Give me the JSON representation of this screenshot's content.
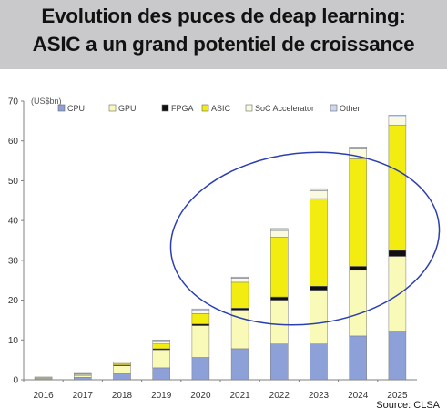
{
  "header": {
    "title_line1": "Evolution des puces de deap learning:",
    "title_line2": "ASIC a un grand potentiel de croissance"
  },
  "source": "Source: CLSA",
  "chart_data": {
    "type": "bar",
    "stacked": true,
    "unit_label": "(US$bn)",
    "categories": [
      "2016",
      "2017",
      "2018",
      "2019",
      "2020",
      "2021",
      "2022",
      "2023",
      "2024",
      "2025"
    ],
    "ylim": [
      0,
      70
    ],
    "yticks": [
      0,
      10,
      20,
      30,
      40,
      50,
      60,
      70
    ],
    "legend_position": "top",
    "series": [
      {
        "name": "CPU",
        "color": "#8ea0d8",
        "values": [
          0.3,
          0.6,
          1.5,
          3.0,
          5.6,
          7.8,
          9.0,
          9.0,
          11.0,
          12.0
        ]
      },
      {
        "name": "GPU",
        "color": "#fafab8",
        "values": [
          0.2,
          0.5,
          2.0,
          4.5,
          8.0,
          9.7,
          11.0,
          13.5,
          16.5,
          19.0
        ]
      },
      {
        "name": "FPGA",
        "color": "#101010",
        "values": [
          0.0,
          0.0,
          0.2,
          0.3,
          0.4,
          0.5,
          0.8,
          1.0,
          1.0,
          1.5
        ]
      },
      {
        "name": "ASIC",
        "color": "#f2ec10",
        "values": [
          0.0,
          0.1,
          0.4,
          1.2,
          2.6,
          6.5,
          15.0,
          22.0,
          27.0,
          31.5
        ]
      },
      {
        "name": "SoC Accelerator",
        "color": "#fafae0",
        "values": [
          0.2,
          0.3,
          0.3,
          0.8,
          0.8,
          1.0,
          1.7,
          2.0,
          2.5,
          2.0
        ]
      },
      {
        "name": "Other",
        "color": "#ced6f2",
        "values": [
          0.0,
          0.1,
          0.1,
          0.2,
          0.4,
          0.3,
          0.5,
          0.5,
          0.5,
          0.5
        ]
      }
    ]
  }
}
